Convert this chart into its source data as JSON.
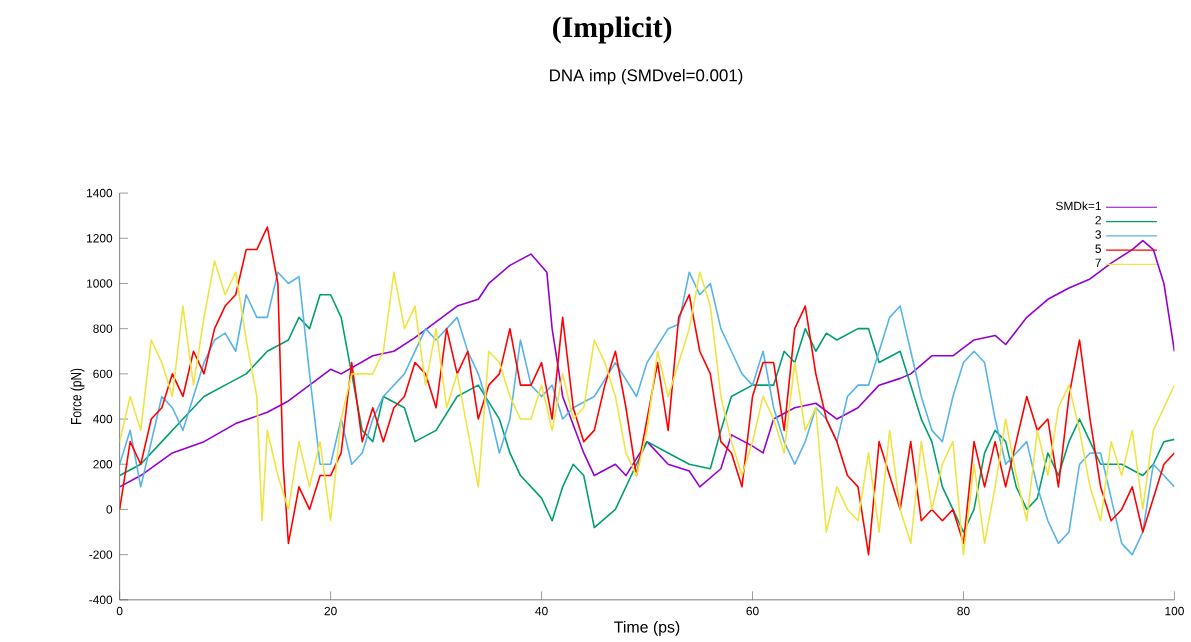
{
  "chart_data": {
    "type": "line",
    "title": "(Implicit)",
    "subtitle": "DNA imp (SMDvel=0.001)",
    "xlabel": "Time (ps)",
    "ylabel": "Force (pN)",
    "xlim": [
      0,
      100
    ],
    "ylim": [
      -400,
      1400
    ],
    "xticks": [
      0,
      20,
      40,
      60,
      80,
      100
    ],
    "yticks": [
      -400,
      -200,
      0,
      200,
      400,
      600,
      800,
      1000,
      1200,
      1400
    ],
    "grid": false,
    "legend": "top right",
    "series": [
      {
        "name": "SMDk=1",
        "color": "#9400d3",
        "x": [
          0,
          2,
          5,
          8,
          11,
          14,
          16,
          18,
          20,
          21,
          24,
          26,
          28,
          30,
          32,
          34,
          35,
          37,
          39,
          40.5,
          41,
          42,
          44,
          45,
          47,
          48,
          50,
          52,
          54,
          55,
          57,
          58,
          60,
          61,
          62,
          64,
          66,
          68,
          70,
          72,
          74,
          75,
          77,
          79,
          81,
          83,
          84,
          86,
          88,
          90,
          92,
          94,
          96,
          97,
          98,
          99,
          100
        ],
        "values": [
          100,
          150,
          250,
          300,
          380,
          430,
          480,
          550,
          620,
          600,
          680,
          700,
          760,
          830,
          900,
          930,
          1000,
          1080,
          1130,
          1050,
          800,
          500,
          250,
          150,
          200,
          150,
          300,
          200,
          170,
          100,
          180,
          330,
          280,
          250,
          400,
          450,
          470,
          400,
          450,
          550,
          580,
          600,
          680,
          680,
          750,
          770,
          730,
          850,
          930,
          980,
          1020,
          1090,
          1150,
          1190,
          1150,
          1000,
          700
        ]
      },
      {
        "name": "2",
        "color": "#009e73",
        "x": [
          0,
          2,
          4,
          6,
          8,
          10,
          12,
          14,
          16,
          17,
          18,
          19,
          20,
          21,
          22,
          23,
          24,
          25,
          27,
          28,
          30,
          32,
          34,
          36,
          37,
          38,
          40,
          41,
          42,
          43,
          44,
          45,
          47,
          49,
          50,
          52,
          54,
          56,
          57,
          58,
          60,
          62,
          63,
          64,
          65,
          66,
          67,
          68,
          70,
          71,
          72,
          74,
          75,
          76,
          77,
          78,
          79,
          80,
          81,
          82,
          83,
          84,
          85,
          86,
          87,
          88,
          89,
          90,
          91,
          92,
          93,
          95,
          97,
          98,
          99,
          100
        ],
        "values": [
          150,
          200,
          300,
          400,
          500,
          550,
          600,
          700,
          750,
          850,
          800,
          950,
          950,
          850,
          600,
          350,
          300,
          500,
          450,
          300,
          350,
          500,
          550,
          400,
          250,
          150,
          50,
          -50,
          100,
          200,
          150,
          -80,
          0,
          200,
          300,
          250,
          200,
          180,
          350,
          500,
          550,
          550,
          700,
          650,
          800,
          700,
          780,
          750,
          800,
          800,
          650,
          700,
          550,
          400,
          300,
          100,
          0,
          -100,
          0,
          250,
          350,
          300,
          100,
          0,
          50,
          250,
          150,
          300,
          400,
          300,
          200,
          200,
          150,
          200,
          300,
          310
        ]
      },
      {
        "name": "3",
        "color": "#56b4e9",
        "x": [
          0,
          1,
          2,
          3,
          4,
          5,
          6,
          7,
          8,
          9,
          10,
          11,
          12,
          13,
          14,
          15,
          16,
          17,
          18,
          19,
          20,
          21,
          22,
          23,
          24,
          25,
          27,
          29,
          30,
          31,
          32,
          33,
          34,
          35,
          36,
          37,
          38,
          39,
          40,
          41,
          42,
          43,
          45,
          47,
          49,
          50,
          52,
          53,
          54,
          55,
          56,
          57,
          58,
          59,
          60,
          61,
          62,
          63,
          64,
          65,
          66,
          67,
          68,
          69,
          70,
          71,
          72,
          73,
          74,
          75,
          76,
          77,
          78,
          79,
          80,
          81,
          82,
          83,
          84,
          85,
          86,
          87,
          88,
          89,
          90,
          91,
          92,
          93,
          94,
          95,
          96,
          97,
          98,
          99,
          100
        ],
        "values": [
          200,
          350,
          100,
          300,
          500,
          450,
          350,
          500,
          650,
          750,
          780,
          700,
          950,
          850,
          850,
          1050,
          1000,
          1030,
          600,
          200,
          200,
          400,
          200,
          250,
          400,
          500,
          600,
          800,
          750,
          800,
          850,
          700,
          600,
          450,
          250,
          400,
          750,
          550,
          500,
          550,
          400,
          450,
          500,
          650,
          500,
          650,
          800,
          820,
          1050,
          950,
          1000,
          800,
          700,
          600,
          550,
          700,
          450,
          300,
          200,
          300,
          450,
          400,
          300,
          500,
          550,
          550,
          700,
          850,
          900,
          700,
          500,
          350,
          300,
          500,
          650,
          700,
          650,
          400,
          200,
          250,
          300,
          100,
          -50,
          -150,
          -100,
          200,
          250,
          250,
          50,
          -150,
          -200,
          -100,
          200,
          150,
          100
        ]
      },
      {
        "name": "5",
        "color": "#ff0000",
        "x": [
          0,
          1,
          2,
          3,
          4,
          5,
          6,
          7,
          8,
          9,
          10,
          11,
          12,
          13,
          14,
          15,
          15.5,
          16,
          17,
          18,
          19,
          20,
          21,
          22,
          23,
          24,
          25,
          26,
          27,
          28,
          29,
          30,
          31,
          32,
          33,
          34,
          35,
          36,
          37,
          38,
          39,
          40,
          41,
          42,
          43,
          44,
          45,
          46,
          47,
          48,
          49,
          50,
          51,
          52,
          53,
          54,
          55,
          56,
          57,
          58,
          59,
          60,
          61,
          62,
          63,
          64,
          65,
          66,
          67,
          68,
          69,
          70,
          71,
          72,
          73,
          74,
          75,
          76,
          77,
          78,
          79,
          80,
          81,
          82,
          83,
          84,
          86,
          87,
          88,
          89,
          90,
          91,
          92,
          93,
          94,
          95,
          96,
          97,
          98,
          99,
          100
        ],
        "values": [
          0,
          300,
          200,
          400,
          450,
          600,
          500,
          700,
          600,
          800,
          900,
          950,
          1150,
          1150,
          1250,
          1000,
          200,
          -150,
          100,
          0,
          150,
          150,
          250,
          650,
          300,
          450,
          300,
          450,
          500,
          650,
          600,
          450,
          800,
          600,
          700,
          400,
          550,
          600,
          800,
          550,
          550,
          650,
          400,
          850,
          450,
          300,
          350,
          550,
          700,
          450,
          150,
          400,
          650,
          350,
          850,
          950,
          700,
          600,
          300,
          250,
          100,
          500,
          650,
          650,
          350,
          800,
          900,
          600,
          400,
          300,
          150,
          100,
          -200,
          300,
          150,
          0,
          300,
          -50,
          0,
          -50,
          0,
          -150,
          300,
          100,
          300,
          100,
          500,
          350,
          400,
          100,
          500,
          750,
          400,
          100,
          -50,
          0,
          100,
          -100,
          50,
          200,
          250
        ]
      },
      {
        "name": "7",
        "color": "#f0e442",
        "x": [
          0,
          1,
          2,
          3,
          4,
          5,
          6,
          7,
          8,
          9,
          10,
          11,
          12,
          13,
          13.5,
          14,
          15,
          16,
          17,
          18,
          19,
          20,
          21,
          22,
          24,
          25,
          26,
          27,
          28,
          29,
          30,
          31,
          32,
          33,
          34,
          35,
          36,
          37,
          38,
          39,
          40,
          41,
          42,
          43,
          44,
          45,
          46,
          47,
          48,
          49,
          50,
          51,
          52,
          53,
          54,
          55,
          56,
          57,
          58,
          59,
          60,
          61,
          62,
          63,
          64,
          65,
          66,
          67,
          68,
          69,
          70,
          71,
          72,
          73,
          74,
          75,
          76,
          77,
          78,
          79,
          80,
          81,
          82,
          83,
          84,
          85,
          86,
          87,
          88,
          89,
          90,
          91,
          92,
          93,
          94,
          95,
          96,
          97,
          98,
          99,
          100
        ],
        "values": [
          300,
          500,
          350,
          750,
          650,
          500,
          900,
          550,
          850,
          1100,
          950,
          1050,
          750,
          500,
          -50,
          350,
          150,
          0,
          300,
          100,
          300,
          -50,
          400,
          600,
          600,
          700,
          1050,
          800,
          900,
          550,
          800,
          450,
          600,
          350,
          100,
          700,
          650,
          500,
          400,
          400,
          550,
          350,
          600,
          400,
          450,
          750,
          650,
          500,
          250,
          150,
          350,
          700,
          500,
          650,
          800,
          1050,
          900,
          500,
          300,
          150,
          300,
          500,
          400,
          250,
          650,
          350,
          450,
          -100,
          100,
          0,
          -50,
          250,
          -100,
          350,
          0,
          -150,
          300,
          0,
          200,
          300,
          -200,
          200,
          -150,
          100,
          400,
          150,
          -50,
          350,
          150,
          450,
          550,
          350,
          100,
          -50,
          300,
          150,
          350,
          0,
          350,
          450,
          550
        ]
      }
    ]
  }
}
